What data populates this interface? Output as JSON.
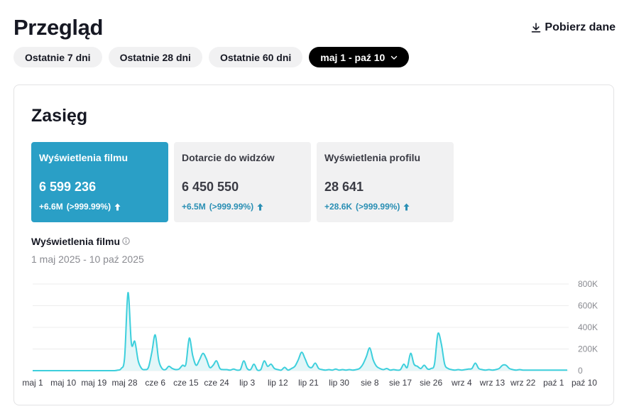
{
  "header": {
    "title": "Przegląd",
    "download_label": "Pobierz dane",
    "download_icon": "download-icon"
  },
  "date_ranges": [
    {
      "label": "Ostatnie 7 dni",
      "active": false
    },
    {
      "label": "Ostatnie 28 dni",
      "active": false
    },
    {
      "label": "Ostatnie 60 dni",
      "active": false
    },
    {
      "label": "maj 1 - paź 10",
      "active": true
    }
  ],
  "section": {
    "title": "Zasięg"
  },
  "metrics": [
    {
      "label": "Wyświetlenia filmu",
      "value": "6 599 236",
      "delta": "+6.6M",
      "delta_pct": "(>999.99%)",
      "active": true
    },
    {
      "label": "Dotarcie do widzów",
      "value": "6 450 550",
      "delta": "+6.5M",
      "delta_pct": "(>999.99%)",
      "active": false
    },
    {
      "label": "Wyświetlenia profilu",
      "value": "28 641",
      "delta": "+28.6K",
      "delta_pct": "(>999.99%)",
      "active": false
    }
  ],
  "chart_header": {
    "title": "Wyświetlenia filmu",
    "info_icon": "info-icon",
    "period": "1 maj 2025 - 10 paź 2025"
  },
  "colors": {
    "accent": "#2a9fc6",
    "line": "#3dcfdc",
    "fill": "#e3f6f8",
    "grid": "#ececec",
    "delta": "#2a8fb4"
  },
  "chart_data": {
    "type": "area",
    "title": "Wyświetlenia filmu",
    "xlabel": "",
    "ylabel": "",
    "ylim": [
      0,
      800000
    ],
    "y_ticks": [
      0,
      200000,
      400000,
      600000,
      800000
    ],
    "y_tick_labels": [
      "0",
      "200K",
      "400K",
      "600K",
      "800K"
    ],
    "x_ticks": [
      {
        "day": 0,
        "label": "maj 1"
      },
      {
        "day": 9,
        "label": "maj 10"
      },
      {
        "day": 18,
        "label": "maj 19"
      },
      {
        "day": 27,
        "label": "maj 28"
      },
      {
        "day": 36,
        "label": "cze 6"
      },
      {
        "day": 45,
        "label": "cze 15"
      },
      {
        "day": 54,
        "label": "cze 24"
      },
      {
        "day": 63,
        "label": "lip 3"
      },
      {
        "day": 72,
        "label": "lip 12"
      },
      {
        "day": 81,
        "label": "lip 21"
      },
      {
        "day": 90,
        "label": "lip 30"
      },
      {
        "day": 99,
        "label": "sie 8"
      },
      {
        "day": 108,
        "label": "sie 17"
      },
      {
        "day": 117,
        "label": "sie 26"
      },
      {
        "day": 126,
        "label": "wrz 4"
      },
      {
        "day": 135,
        "label": "wrz 13"
      },
      {
        "day": 144,
        "label": "wrz 22"
      },
      {
        "day": 153,
        "label": "paź 1"
      },
      {
        "day": 162,
        "label": "paź 10"
      }
    ],
    "grid": true,
    "legend": "none",
    "series": [
      {
        "values": [
          0,
          0,
          0,
          0,
          0,
          0,
          0,
          0,
          0,
          0,
          0,
          0,
          0,
          0,
          0,
          0,
          0,
          0,
          0,
          0,
          0,
          0,
          0,
          0,
          0,
          5000,
          20000,
          120000,
          720000,
          250000,
          270000,
          90000,
          20000,
          10000,
          30000,
          170000,
          330000,
          100000,
          20000,
          10000,
          40000,
          20000,
          10000,
          15000,
          50000,
          60000,
          300000,
          140000,
          50000,
          100000,
          160000,
          110000,
          30000,
          50000,
          90000,
          20000,
          10000,
          10000,
          5000,
          15000,
          5000,
          10000,
          90000,
          20000,
          10000,
          60000,
          5000,
          10000,
          90000,
          40000,
          60000,
          20000,
          10000,
          5000,
          30000,
          5000,
          20000,
          40000,
          100000,
          170000,
          110000,
          40000,
          30000,
          70000,
          20000,
          10000,
          5000,
          10000,
          5000,
          15000,
          5000,
          10000,
          5000,
          10000,
          5000,
          10000,
          20000,
          60000,
          130000,
          210000,
          100000,
          40000,
          20000,
          10000,
          20000,
          5000,
          10000,
          5000,
          10000,
          60000,
          30000,
          160000,
          60000,
          40000,
          20000,
          50000,
          15000,
          20000,
          60000,
          340000,
          250000,
          60000,
          20000,
          10000,
          5000,
          10000,
          5000,
          10000,
          15000,
          20000,
          70000,
          20000,
          10000,
          5000,
          10000,
          5000,
          10000,
          20000,
          50000,
          50000,
          20000,
          10000,
          5000,
          10000,
          5000,
          5000,
          5000,
          5000,
          5000,
          5000,
          5000,
          5000,
          5000,
          5000,
          5000,
          5000,
          5000,
          5000
        ]
      }
    ]
  }
}
